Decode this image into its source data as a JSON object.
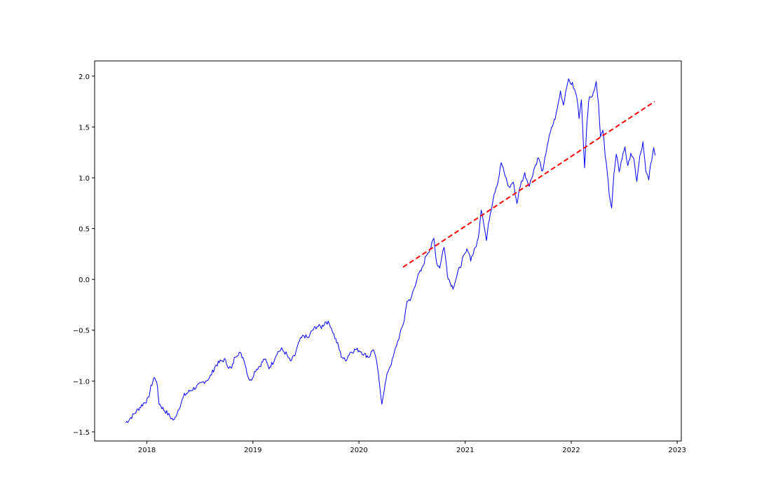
{
  "chart_data": {
    "type": "line",
    "title": "",
    "xlabel": "",
    "ylabel": "",
    "xlim": [
      "2017-07-05",
      "2023-01-15"
    ],
    "ylim": [
      -1.59,
      2.15
    ],
    "x_ticks": [
      "2018",
      "2019",
      "2020",
      "2021",
      "2022",
      "2023"
    ],
    "x_tick_dates": [
      "2018-01-01",
      "2019-01-01",
      "2020-01-01",
      "2021-01-01",
      "2022-01-01",
      "2023-01-01"
    ],
    "y_ticks": [
      "−1.5",
      "−1.0",
      "−0.5",
      "0.0",
      "0.5",
      "1.0",
      "1.5",
      "2.0"
    ],
    "y_tick_values": [
      -1.5,
      -1.0,
      -0.5,
      0.0,
      0.5,
      1.0,
      1.5,
      2.0
    ],
    "grid": false,
    "series": [
      {
        "color": "#0000ff",
        "style": "solid",
        "points": [
          [
            "2017-10-20",
            -1.41
          ],
          [
            "2017-11-10",
            -1.35
          ],
          [
            "2017-12-01",
            -1.28
          ],
          [
            "2017-12-20",
            -1.22
          ],
          [
            "2018-01-05",
            -1.18
          ],
          [
            "2018-01-15",
            -1.06
          ],
          [
            "2018-01-25",
            -0.97
          ],
          [
            "2018-02-03",
            -0.99
          ],
          [
            "2018-02-12",
            -1.22
          ],
          [
            "2018-02-25",
            -1.27
          ],
          [
            "2018-03-10",
            -1.31
          ],
          [
            "2018-03-25",
            -1.36
          ],
          [
            "2018-04-05",
            -1.39
          ],
          [
            "2018-04-12",
            -1.33
          ],
          [
            "2018-04-25",
            -1.24
          ],
          [
            "2018-05-10",
            -1.14
          ],
          [
            "2018-06-01",
            -1.09
          ],
          [
            "2018-06-25",
            -1.05
          ],
          [
            "2018-07-15",
            -1.01
          ],
          [
            "2018-08-05",
            -0.97
          ],
          [
            "2018-08-25",
            -0.85
          ],
          [
            "2018-09-10",
            -0.81
          ],
          [
            "2018-09-25",
            -0.79
          ],
          [
            "2018-10-10",
            -0.86
          ],
          [
            "2018-10-20",
            -0.88
          ],
          [
            "2018-11-01",
            -0.75
          ],
          [
            "2018-11-15",
            -0.72
          ],
          [
            "2018-12-01",
            -0.78
          ],
          [
            "2018-12-15",
            -0.95
          ],
          [
            "2018-12-24",
            -1.0
          ],
          [
            "2019-01-10",
            -0.89
          ],
          [
            "2019-01-25",
            -0.85
          ],
          [
            "2019-02-10",
            -0.78
          ],
          [
            "2019-02-25",
            -0.87
          ],
          [
            "2019-03-10",
            -0.82
          ],
          [
            "2019-03-25",
            -0.72
          ],
          [
            "2019-04-10",
            -0.69
          ],
          [
            "2019-04-25",
            -0.73
          ],
          [
            "2019-05-10",
            -0.81
          ],
          [
            "2019-05-25",
            -0.75
          ],
          [
            "2019-06-10",
            -0.61
          ],
          [
            "2019-06-25",
            -0.55
          ],
          [
            "2019-07-10",
            -0.58
          ],
          [
            "2019-07-25",
            -0.5
          ],
          [
            "2019-08-10",
            -0.46
          ],
          [
            "2019-08-25",
            -0.47
          ],
          [
            "2019-09-10",
            -0.41
          ],
          [
            "2019-09-25",
            -0.45
          ],
          [
            "2019-10-10",
            -0.57
          ],
          [
            "2019-10-20",
            -0.64
          ],
          [
            "2019-11-01",
            -0.75
          ],
          [
            "2019-11-15",
            -0.8
          ],
          [
            "2019-12-01",
            -0.72
          ],
          [
            "2019-12-20",
            -0.69
          ],
          [
            "2020-01-05",
            -0.7
          ],
          [
            "2020-01-20",
            -0.74
          ],
          [
            "2020-02-05",
            -0.76
          ],
          [
            "2020-02-20",
            -0.68
          ],
          [
            "2020-03-05",
            -0.86
          ],
          [
            "2020-03-12",
            -1.05
          ],
          [
            "2020-03-20",
            -1.21
          ],
          [
            "2020-03-28",
            -1.08
          ],
          [
            "2020-04-10",
            -0.9
          ],
          [
            "2020-04-25",
            -0.8
          ],
          [
            "2020-05-10",
            -0.64
          ],
          [
            "2020-05-25",
            -0.51
          ],
          [
            "2020-06-05",
            -0.4
          ],
          [
            "2020-06-15",
            -0.2
          ],
          [
            "2020-06-25",
            -0.22
          ],
          [
            "2020-07-05",
            -0.12
          ],
          [
            "2020-07-20",
            0.02
          ],
          [
            "2020-08-05",
            0.1
          ],
          [
            "2020-08-20",
            0.24
          ],
          [
            "2020-09-05",
            0.32
          ],
          [
            "2020-09-15",
            0.4
          ],
          [
            "2020-09-25",
            0.16
          ],
          [
            "2020-10-05",
            0.12
          ],
          [
            "2020-10-20",
            0.33
          ],
          [
            "2020-11-01",
            0.05
          ],
          [
            "2020-11-10",
            -0.03
          ],
          [
            "2020-11-20",
            -0.08
          ],
          [
            "2020-12-05",
            0.05
          ],
          [
            "2020-12-25",
            0.21
          ],
          [
            "2021-01-10",
            0.3
          ],
          [
            "2021-01-20",
            0.2
          ],
          [
            "2021-02-01",
            0.28
          ],
          [
            "2021-02-15",
            0.4
          ],
          [
            "2021-02-25",
            0.7
          ],
          [
            "2021-03-05",
            0.58
          ],
          [
            "2021-03-15",
            0.38
          ],
          [
            "2021-03-25",
            0.6
          ],
          [
            "2021-04-10",
            0.84
          ],
          [
            "2021-04-25",
            0.98
          ],
          [
            "2021-05-05",
            1.15
          ],
          [
            "2021-05-15",
            1.05
          ],
          [
            "2021-06-01",
            0.9
          ],
          [
            "2021-06-15",
            0.96
          ],
          [
            "2021-06-28",
            0.75
          ],
          [
            "2021-07-10",
            0.93
          ],
          [
            "2021-07-25",
            1.04
          ],
          [
            "2021-08-10",
            0.92
          ],
          [
            "2021-08-25",
            1.08
          ],
          [
            "2021-09-10",
            1.2
          ],
          [
            "2021-09-25",
            1.05
          ],
          [
            "2021-10-10",
            1.32
          ],
          [
            "2021-10-25",
            1.48
          ],
          [
            "2021-11-10",
            1.62
          ],
          [
            "2021-11-25",
            1.85
          ],
          [
            "2021-12-05",
            1.72
          ],
          [
            "2021-12-20",
            1.96
          ],
          [
            "2022-01-05",
            1.92
          ],
          [
            "2022-01-20",
            1.8
          ],
          [
            "2022-01-28",
            1.6
          ],
          [
            "2022-02-05",
            1.79
          ],
          [
            "2022-02-12",
            1.3
          ],
          [
            "2022-02-16",
            1.12
          ],
          [
            "2022-02-24",
            1.55
          ],
          [
            "2022-03-05",
            1.82
          ],
          [
            "2022-03-15",
            1.8
          ],
          [
            "2022-03-28",
            1.95
          ],
          [
            "2022-04-05",
            1.73
          ],
          [
            "2022-04-12",
            1.4
          ],
          [
            "2022-04-20",
            1.46
          ],
          [
            "2022-04-28",
            1.22
          ],
          [
            "2022-05-05",
            1.05
          ],
          [
            "2022-05-12",
            0.85
          ],
          [
            "2022-05-20",
            0.71
          ],
          [
            "2022-05-28",
            1.03
          ],
          [
            "2022-06-05",
            1.22
          ],
          [
            "2022-06-15",
            1.07
          ],
          [
            "2022-06-25",
            1.19
          ],
          [
            "2022-07-05",
            1.31
          ],
          [
            "2022-07-15",
            1.1
          ],
          [
            "2022-07-25",
            1.25
          ],
          [
            "2022-08-05",
            1.16
          ],
          [
            "2022-08-15",
            0.97
          ],
          [
            "2022-08-25",
            1.2
          ],
          [
            "2022-09-05",
            1.34
          ],
          [
            "2022-09-15",
            1.05
          ],
          [
            "2022-09-25",
            1.0
          ],
          [
            "2022-10-05",
            1.18
          ],
          [
            "2022-10-12",
            1.3
          ],
          [
            "2022-10-17",
            1.22
          ]
        ]
      },
      {
        "color": "#ff0000",
        "style": "dashed",
        "points": [
          [
            "2020-06-01",
            0.12
          ],
          [
            "2022-10-15",
            1.75
          ]
        ]
      }
    ]
  }
}
